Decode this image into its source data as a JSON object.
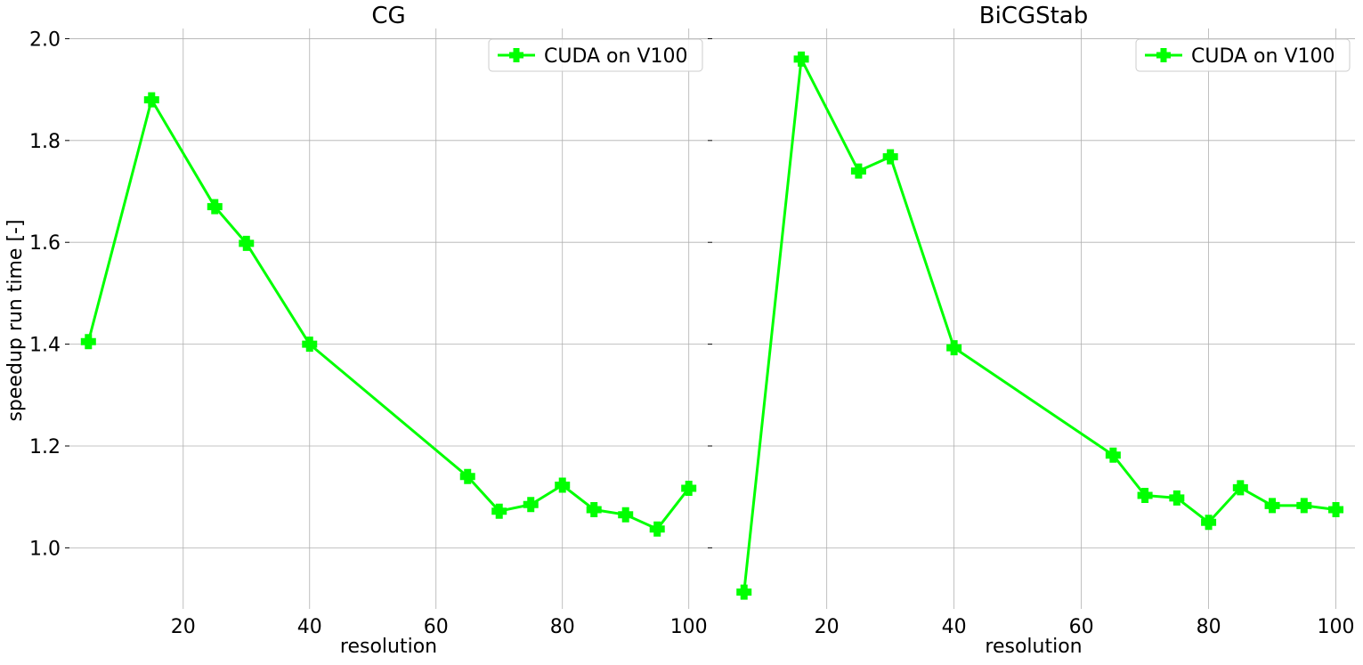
{
  "figure": {
    "ylabel": "speedup run time [-]",
    "legend_location": "top-right"
  },
  "chart_data": [
    {
      "type": "line",
      "title": "CG",
      "xlabel": "resolution",
      "ylabel": "speedup run time [-]",
      "xlim": [
        2,
        103
      ],
      "ylim": [
        0.88,
        2.02
      ],
      "xticks": [
        20,
        40,
        60,
        80,
        100
      ],
      "yticks": [
        1.0,
        1.2,
        1.4,
        1.6,
        1.8,
        2.0
      ],
      "ytick_labels": [
        "1.0",
        "1.2",
        "1.4",
        "1.6",
        "1.8",
        "2.0"
      ],
      "grid": true,
      "legend_position": "top-right",
      "series": [
        {
          "name": "CUDA on V100",
          "color": "#00ff00",
          "marker": "P",
          "x": [
            5,
            15,
            25,
            30,
            40,
            65,
            70,
            75,
            80,
            85,
            90,
            95,
            100
          ],
          "y": [
            1.405,
            1.88,
            1.67,
            1.598,
            1.4,
            1.14,
            1.072,
            1.085,
            1.123,
            1.075,
            1.065,
            1.037,
            1.117
          ]
        }
      ]
    },
    {
      "type": "line",
      "title": "BiCGStab",
      "xlabel": "resolution",
      "xlim": [
        2,
        103
      ],
      "ylim": [
        0.88,
        2.02
      ],
      "xticks": [
        20,
        40,
        60,
        80,
        100
      ],
      "yticks": [
        1.0,
        1.2,
        1.4,
        1.6,
        1.8,
        2.0
      ],
      "grid": true,
      "legend_position": "top-right",
      "series": [
        {
          "name": "CUDA on V100",
          "color": "#00ff00",
          "marker": "P",
          "x": [
            7,
            16,
            25,
            30,
            40,
            65,
            70,
            75,
            80,
            85,
            90,
            95,
            100
          ],
          "y": [
            0.913,
            1.96,
            1.74,
            1.768,
            1.393,
            1.182,
            1.103,
            1.098,
            1.05,
            1.118,
            1.083,
            1.083,
            1.075
          ]
        }
      ]
    }
  ]
}
